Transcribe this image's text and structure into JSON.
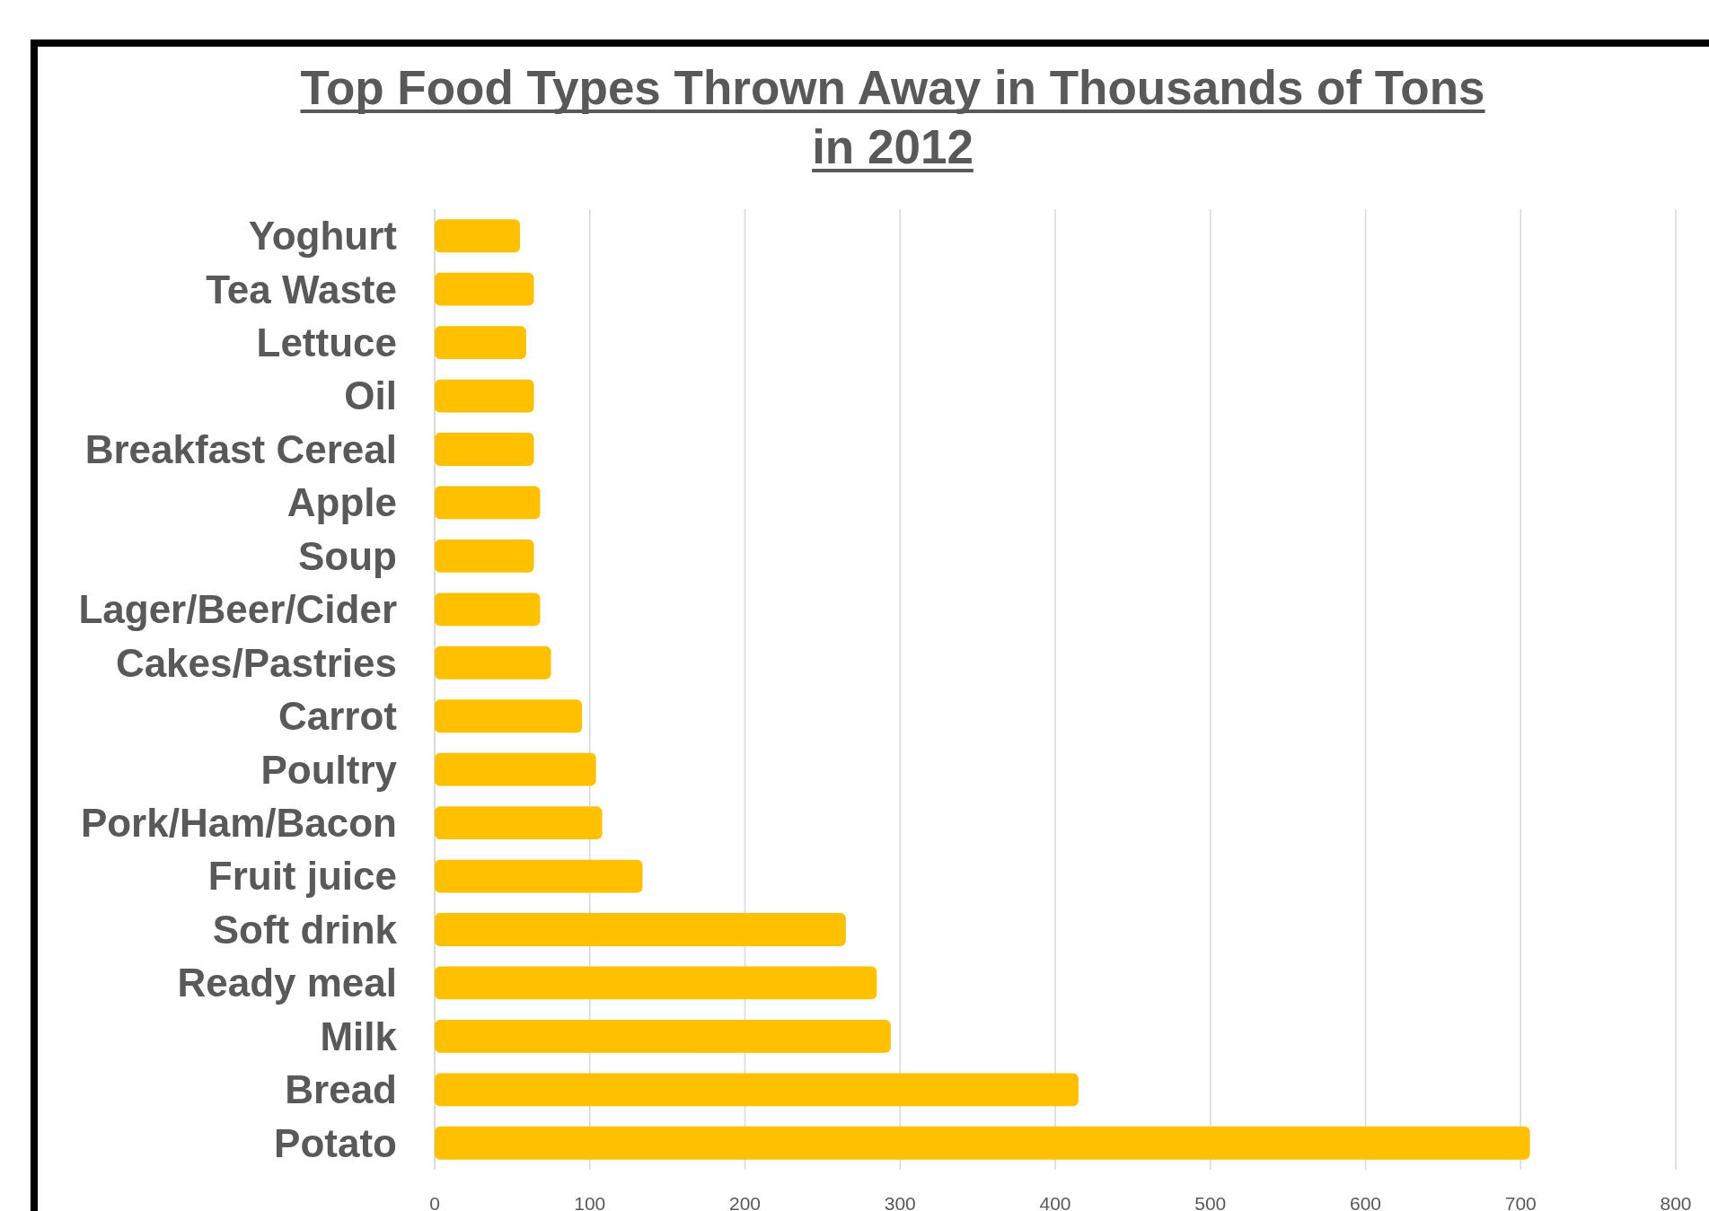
{
  "chart_data": {
    "type": "bar",
    "orientation": "horizontal",
    "title": "Top Food Types Thrown Away in Thousands of Tons in 2012",
    "categories": [
      "Yoghurt",
      "Tea Waste",
      "Lettuce",
      "Oil",
      "Breakfast Cereal",
      "Apple",
      "Soup",
      "Lager/Beer/Cider",
      "Cakes/Pastries",
      "Carrot",
      "Poultry",
      "Pork/Ham/Bacon",
      "Fruit juice",
      "Soft drink",
      "Ready meal",
      "Milk",
      "Bread",
      "Potato"
    ],
    "values": [
      55,
      64,
      59,
      64,
      64,
      68,
      64,
      68,
      75,
      95,
      104,
      108,
      134,
      265,
      285,
      294,
      415,
      706
    ],
    "color": "#ffc000",
    "xlim": [
      0,
      800
    ],
    "xticks": [
      0,
      100,
      200,
      300,
      400,
      500,
      600,
      700,
      800
    ],
    "grid": "x"
  }
}
